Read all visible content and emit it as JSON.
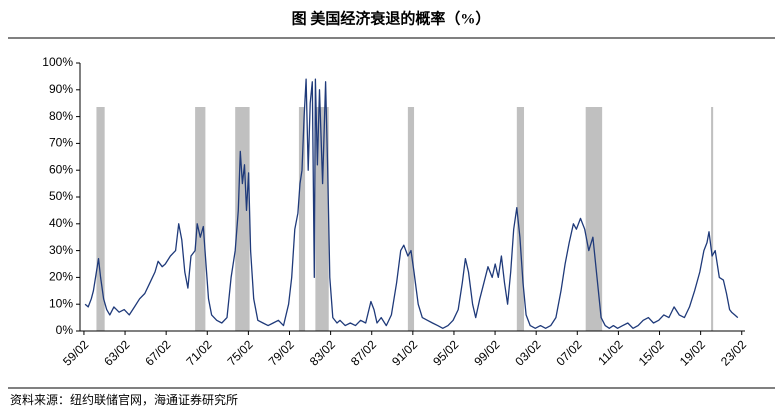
{
  "chart_data": {
    "type": "line",
    "title": "图  美国经济衰退的概率（%）",
    "source": "资料来源：纽约联储官网，海通证券研究所",
    "xlim": [
      1958.7,
      2023.4
    ],
    "ylim": [
      0,
      100
    ],
    "yticks": [
      {
        "value": 0,
        "label": "0%"
      },
      {
        "value": 10,
        "label": "10%"
      },
      {
        "value": 20,
        "label": "20%"
      },
      {
        "value": 30,
        "label": "30%"
      },
      {
        "value": 40,
        "label": "40%"
      },
      {
        "value": 50,
        "label": "50%"
      },
      {
        "value": 60,
        "label": "60%"
      },
      {
        "value": 70,
        "label": "70%"
      },
      {
        "value": 80,
        "label": "80%"
      },
      {
        "value": 90,
        "label": "90%"
      },
      {
        "value": 100,
        "label": "100%"
      }
    ],
    "xticks": [
      {
        "value": 1959.083,
        "label": "59/02"
      },
      {
        "value": 1963.083,
        "label": "63/02"
      },
      {
        "value": 1967.083,
        "label": "67/02"
      },
      {
        "value": 1971.083,
        "label": "71/02"
      },
      {
        "value": 1975.083,
        "label": "75/02"
      },
      {
        "value": 1979.083,
        "label": "79/02"
      },
      {
        "value": 1983.083,
        "label": "83/02"
      },
      {
        "value": 1987.083,
        "label": "87/02"
      },
      {
        "value": 1991.083,
        "label": "91/02"
      },
      {
        "value": 1995.083,
        "label": "95/02"
      },
      {
        "value": 1999.083,
        "label": "99/02"
      },
      {
        "value": 2003.083,
        "label": "03/02"
      },
      {
        "value": 2007.083,
        "label": "07/02"
      },
      {
        "value": 2011.083,
        "label": "11/02"
      },
      {
        "value": 2015.083,
        "label": "15/02"
      },
      {
        "value": 2019.083,
        "label": "19/02"
      },
      {
        "value": 2023.083,
        "label": "23/02"
      }
    ],
    "recessions": [
      [
        1960.3,
        1961.1
      ],
      [
        1969.9,
        1970.9
      ],
      [
        1973.8,
        1975.2
      ],
      [
        1980.0,
        1980.6
      ],
      [
        1981.6,
        1982.9
      ],
      [
        1990.6,
        1991.2
      ],
      [
        2001.2,
        2001.9
      ],
      [
        2007.9,
        2009.5
      ],
      [
        2020.1,
        2020.3
      ]
    ],
    "recession_color": "#c0c0c0",
    "series": [
      {
        "color": "#1f3a7a",
        "x": [
          1959.2,
          1959.5,
          1959.8,
          1960.0,
          1960.3,
          1960.5,
          1960.7,
          1961.0,
          1961.3,
          1961.6,
          1962.0,
          1962.5,
          1963.0,
          1963.5,
          1964.0,
          1964.5,
          1965.0,
          1965.5,
          1966.0,
          1966.3,
          1966.7,
          1967.0,
          1967.5,
          1968.0,
          1968.3,
          1968.6,
          1968.9,
          1969.2,
          1969.5,
          1969.9,
          1970.1,
          1970.4,
          1970.7,
          1970.9,
          1971.2,
          1971.5,
          1972.0,
          1972.5,
          1973.0,
          1973.4,
          1973.8,
          1974.1,
          1974.3,
          1974.5,
          1974.7,
          1974.9,
          1975.1,
          1975.3,
          1975.6,
          1976.0,
          1976.5,
          1977.0,
          1977.5,
          1978.0,
          1978.5,
          1979.0,
          1979.3,
          1979.6,
          1979.9,
          1980.1,
          1980.3,
          1980.5,
          1980.7,
          1980.9,
          1981.1,
          1981.3,
          1981.5,
          1981.6,
          1981.8,
          1982.0,
          1982.3,
          1982.6,
          1982.8,
          1983.0,
          1983.3,
          1983.7,
          1984.0,
          1984.5,
          1985.0,
          1985.5,
          1986.0,
          1986.5,
          1987.0,
          1987.3,
          1987.6,
          1988.0,
          1988.5,
          1989.0,
          1989.5,
          1989.9,
          1990.2,
          1990.6,
          1990.9,
          1991.2,
          1991.6,
          1992.0,
          1992.5,
          1993.0,
          1993.5,
          1994.0,
          1994.5,
          1995.0,
          1995.5,
          1995.9,
          1996.2,
          1996.5,
          1996.9,
          1997.2,
          1997.6,
          1998.0,
          1998.4,
          1998.8,
          1999.1,
          1999.4,
          1999.7,
          2000.0,
          2000.3,
          2000.6,
          2000.9,
          2001.2,
          2001.5,
          2001.8,
          2002.1,
          2002.5,
          2003.0,
          2003.5,
          2004.0,
          2004.5,
          2005.0,
          2005.5,
          2005.9,
          2006.3,
          2006.7,
          2007.0,
          2007.4,
          2007.8,
          2008.2,
          2008.6,
          2009.0,
          2009.4,
          2009.8,
          2010.2,
          2010.6,
          2011.0,
          2011.5,
          2012.0,
          2012.5,
          2013.0,
          2013.5,
          2014.0,
          2014.5,
          2015.0,
          2015.5,
          2016.0,
          2016.5,
          2017.0,
          2017.5,
          2018.0,
          2018.5,
          2019.0,
          2019.4,
          2019.7,
          2019.9,
          2020.2,
          2020.5,
          2020.9,
          2021.3,
          2021.6,
          2021.9,
          2022.1,
          2022.4,
          2022.7
        ],
        "values": [
          10,
          9,
          12,
          15,
          22,
          27,
          20,
          12,
          8,
          6,
          9,
          7,
          8,
          6,
          9,
          12,
          14,
          18,
          22,
          26,
          24,
          25,
          28,
          30,
          40,
          34,
          22,
          16,
          28,
          30,
          40,
          35,
          39,
          28,
          12,
          6,
          4,
          3,
          5,
          20,
          30,
          45,
          67,
          55,
          62,
          45,
          59,
          30,
          12,
          4,
          3,
          2,
          3,
          4,
          2,
          10,
          20,
          38,
          44,
          55,
          60,
          80,
          94,
          60,
          85,
          93,
          20,
          94,
          62,
          90,
          55,
          93,
          60,
          20,
          5,
          3,
          4,
          2,
          3,
          2,
          4,
          3,
          11,
          8,
          3,
          5,
          2,
          6,
          18,
          30,
          32,
          28,
          30,
          22,
          10,
          5,
          4,
          3,
          2,
          1,
          2,
          4,
          8,
          18,
          27,
          22,
          10,
          5,
          12,
          18,
          24,
          20,
          25,
          20,
          28,
          18,
          10,
          22,
          38,
          46,
          35,
          18,
          6,
          2,
          1,
          2,
          1,
          2,
          5,
          15,
          25,
          33,
          40,
          38,
          42,
          38,
          30,
          35,
          20,
          5,
          2,
          1,
          2,
          1,
          2,
          3,
          1,
          2,
          4,
          5,
          3,
          4,
          6,
          5,
          9,
          6,
          5,
          9,
          15,
          22,
          30,
          33,
          37,
          28,
          30,
          20,
          19,
          14,
          8,
          7,
          6,
          5
        ]
      }
    ]
  }
}
